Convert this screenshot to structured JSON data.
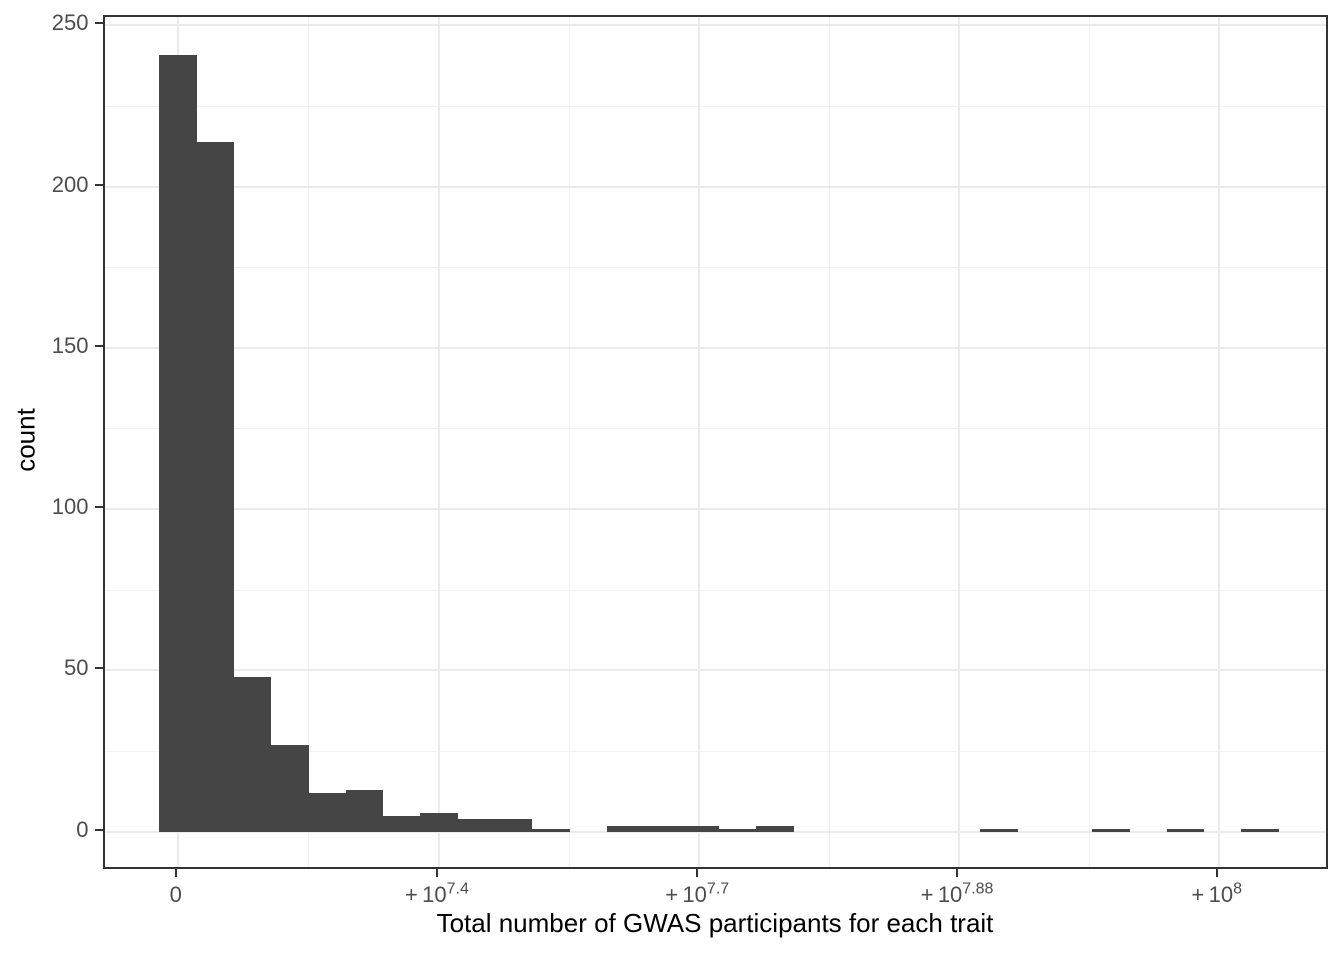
{
  "chart_data": {
    "type": "bar",
    "subtype": "histogram",
    "title": "",
    "xlabel": "Total number of GWAS participants for each trait",
    "ylabel": "count",
    "x_axis": {
      "tick_labels": [
        "0",
        "+10^7.4",
        "+10^7.7",
        "+10^7.88",
        "+10^8"
      ],
      "scale": "offset powers of 10 (pseudo-log), evenly spaced ticks",
      "grid": true
    },
    "y_axis": {
      "tick_values": [
        0,
        50,
        100,
        150,
        200,
        250
      ],
      "tick_labels": [
        "0",
        "50",
        "100",
        "150",
        "200",
        "250"
      ],
      "ylim": [
        0,
        253
      ],
      "grid": true
    },
    "bins": {
      "n_bins": 30,
      "counts": [
        241,
        214,
        48,
        27,
        12,
        13,
        5,
        6,
        4,
        4,
        1,
        0,
        2,
        2,
        2,
        1,
        2,
        0,
        0,
        0,
        0,
        0,
        1,
        0,
        0,
        1,
        0,
        1,
        0,
        1
      ],
      "first_bin_centered_on_tick": "0"
    },
    "legend": "none",
    "colors": {
      "bar_fill": "#454545",
      "panel_border": "#333333",
      "grid_major": "#ebebeb",
      "grid_minor": "#f2f2f2",
      "tick_mark": "#333333",
      "tick_label": "#4d4d4d",
      "axis_title": "#000000",
      "background": "#ffffff"
    }
  }
}
